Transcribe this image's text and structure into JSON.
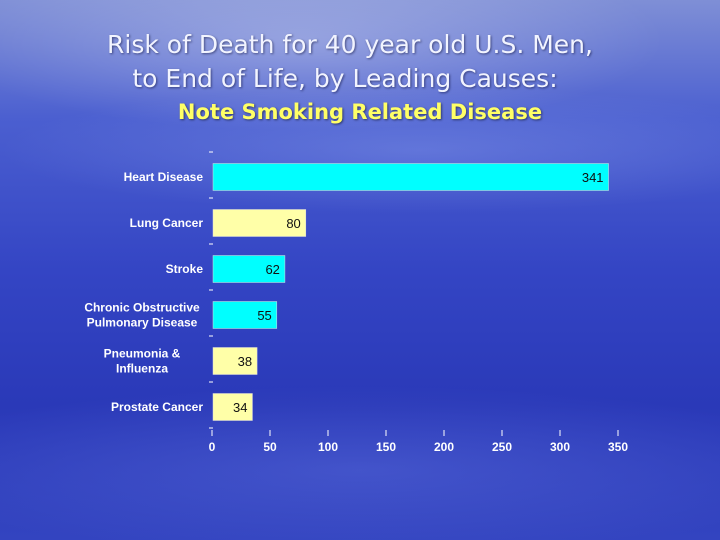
{
  "title": {
    "line1": "Risk of Death for 40 year old U.S. Men,",
    "line2": "to End of Life, by Leading Causes:",
    "subtitle": "Note Smoking Related Disease"
  },
  "colors": {
    "bar_cyan": "#00ffff",
    "bar_yellow": "#ffffa8",
    "label_text": "#ffffff",
    "subtitle": "#ffff66"
  },
  "chart_data": {
    "type": "bar",
    "orientation": "horizontal",
    "title": "Risk of Death for 40 year old U.S. Men, to End of Life, by Leading Causes: Note Smoking Related Disease",
    "xlabel": "",
    "ylabel": "",
    "xlim": [
      0,
      350
    ],
    "xticks": [
      0,
      50,
      100,
      150,
      200,
      250,
      300,
      350
    ],
    "grid": false,
    "categories": [
      [
        "Heart Disease"
      ],
      [
        "Lung Cancer"
      ],
      [
        "Stroke"
      ],
      [
        "Chronic Obstructive",
        "Pulmonary Disease"
      ],
      [
        "Pneumonia &",
        "Influenza"
      ],
      [
        "Prostate Cancer"
      ]
    ],
    "values": [
      341,
      80,
      62,
      55,
      38,
      34
    ],
    "bar_colors": [
      "#00ffff",
      "#ffffa8",
      "#00ffff",
      "#00ffff",
      "#ffffa8",
      "#ffffa8"
    ]
  }
}
